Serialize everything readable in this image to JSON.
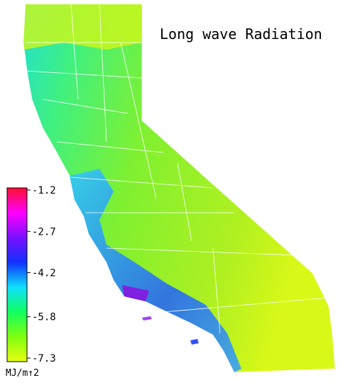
{
  "title": "Long wave Radiation",
  "colorbar": {
    "ticks": [
      -1.2,
      -2.7,
      -4.2,
      -5.8,
      -7.3
    ],
    "lim": [
      -1.2,
      -7.3
    ],
    "unit": "MJ/m↑2",
    "colors": [
      "#ff1030",
      "#ff00ff",
      "#7a10ff",
      "#1030ff",
      "#10e0ff",
      "#10ff60",
      "#80ff10",
      "#e8ff10"
    ]
  }
}
